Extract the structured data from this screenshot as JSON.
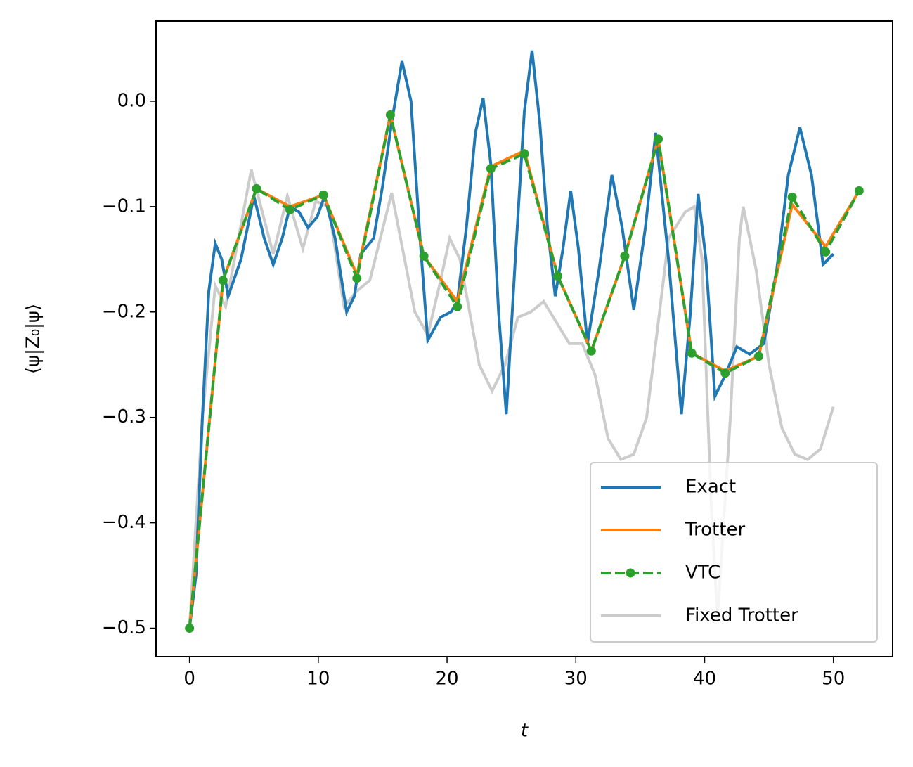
{
  "chart_data": {
    "type": "line",
    "xlabel": "t",
    "ylabel": "⟨ψ|Z₀|ψ⟩",
    "xlim": [
      -2.6,
      54.6
    ],
    "ylim": [
      -0.527,
      0.076
    ],
    "xticks": [
      0,
      10,
      20,
      30,
      40,
      50
    ],
    "yticks": [
      {
        "value": -0.5,
        "label": "−0.5"
      },
      {
        "value": -0.4,
        "label": "−0.4"
      },
      {
        "value": -0.3,
        "label": "−0.3"
      },
      {
        "value": -0.2,
        "label": "−0.2"
      },
      {
        "value": -0.1,
        "label": "−0.1"
      },
      {
        "value": 0,
        "label": "0.0"
      }
    ],
    "legend": "lower right",
    "series": [
      {
        "name": "Exact",
        "color": "#1f77b4",
        "linestyle": "solid",
        "x": [
          0,
          0.5,
          1,
          1.5,
          2,
          2.5,
          3,
          4,
          5,
          5.8,
          6.5,
          7.2,
          7.8,
          8.5,
          9.2,
          9.9,
          10.5,
          11.3,
          12.2,
          12.8,
          13.3,
          14.3,
          15,
          15.7,
          16.5,
          17.2,
          17.9,
          18.5,
          19.5,
          20.3,
          20.8,
          21.5,
          22.2,
          22.8,
          23.4,
          24,
          24.6,
          25.3,
          26,
          26.6,
          27.2,
          27.8,
          28.4,
          29,
          29.6,
          30.2,
          30.9,
          31.8,
          32.8,
          33.6,
          34.5,
          35.4,
          36.2,
          37.2,
          38.2,
          38.9,
          39.5,
          40.1,
          40.8,
          41.6,
          42.5,
          43.5,
          44.6,
          45.6,
          46.5,
          47.4,
          48.3,
          49.2,
          50
        ],
        "values": [
          -0.5,
          -0.45,
          -0.3,
          -0.18,
          -0.135,
          -0.15,
          -0.185,
          -0.15,
          -0.09,
          -0.13,
          -0.155,
          -0.13,
          -0.1,
          -0.105,
          -0.12,
          -0.11,
          -0.09,
          -0.13,
          -0.2,
          -0.185,
          -0.145,
          -0.13,
          -0.08,
          -0.02,
          0.038,
          0.0,
          -0.13,
          -0.227,
          -0.205,
          -0.2,
          -0.19,
          -0.12,
          -0.03,
          0.003,
          -0.06,
          -0.2,
          -0.297,
          -0.15,
          -0.01,
          0.048,
          -0.02,
          -0.12,
          -0.185,
          -0.14,
          -0.085,
          -0.14,
          -0.23,
          -0.16,
          -0.07,
          -0.12,
          -0.198,
          -0.12,
          -0.03,
          -0.15,
          -0.297,
          -0.2,
          -0.088,
          -0.15,
          -0.28,
          -0.26,
          -0.233,
          -0.24,
          -0.23,
          -0.16,
          -0.07,
          -0.025,
          -0.07,
          -0.155,
          -0.145
        ]
      },
      {
        "name": "Trotter",
        "color": "#ff7f0e",
        "linestyle": "solid",
        "x": [
          0,
          2.6,
          5.2,
          7.8,
          10.4,
          13.0,
          15.6,
          18.2,
          20.8,
          23.4,
          26.0,
          28.6,
          31.2,
          33.8,
          36.4,
          39.0,
          41.6,
          44.2,
          46.8,
          49.4,
          52.0
        ],
        "values": [
          -0.5,
          -0.17,
          -0.083,
          -0.1,
          -0.089,
          -0.165,
          -0.013,
          -0.147,
          -0.19,
          -0.062,
          -0.047,
          -0.166,
          -0.237,
          -0.147,
          -0.036,
          -0.239,
          -0.256,
          -0.242,
          -0.098,
          -0.138,
          -0.085
        ]
      },
      {
        "name": "VTC",
        "color": "#2ca02c",
        "linestyle": "dashed",
        "marker": "o",
        "x": [
          0,
          2.6,
          5.2,
          7.8,
          10.4,
          13.0,
          15.6,
          18.2,
          20.8,
          23.4,
          26.0,
          28.6,
          31.2,
          33.8,
          36.4,
          39.0,
          41.6,
          44.2,
          46.8,
          49.4,
          52.0
        ],
        "values": [
          -0.5,
          -0.17,
          -0.083,
          -0.103,
          -0.089,
          -0.168,
          -0.013,
          -0.147,
          -0.195,
          -0.064,
          -0.05,
          -0.166,
          -0.237,
          -0.147,
          -0.036,
          -0.239,
          -0.258,
          -0.242,
          -0.091,
          -0.143,
          -0.085
        ]
      },
      {
        "name": "Fixed Trotter",
        "color": "#cccccc",
        "linestyle": "solid",
        "x": [
          0,
          1,
          2,
          2.8,
          4.8,
          6.5,
          7.6,
          8.8,
          9.8,
          10.8,
          12,
          13,
          14,
          15.7,
          17.5,
          18.5,
          19.5,
          20.2,
          21,
          22.5,
          23.5,
          24.5,
          25.5,
          26.5,
          27.5,
          28.5,
          29.5,
          30.5,
          31.5,
          32.5,
          33.5,
          34.5,
          35.5,
          36.5,
          37.2,
          38.5,
          39.2,
          39.8,
          40.5,
          41,
          42,
          42.7,
          43,
          44,
          45,
          46,
          47,
          48,
          49,
          50
        ],
        "values": [
          -0.5,
          -0.3,
          -0.175,
          -0.195,
          -0.065,
          -0.145,
          -0.09,
          -0.14,
          -0.095,
          -0.1,
          -0.195,
          -0.18,
          -0.17,
          -0.087,
          -0.2,
          -0.222,
          -0.17,
          -0.13,
          -0.15,
          -0.25,
          -0.275,
          -0.25,
          -0.205,
          -0.2,
          -0.19,
          -0.21,
          -0.23,
          -0.23,
          -0.26,
          -0.32,
          -0.34,
          -0.335,
          -0.3,
          -0.2,
          -0.13,
          -0.105,
          -0.1,
          -0.15,
          -0.38,
          -0.49,
          -0.3,
          -0.13,
          -0.1,
          -0.16,
          -0.25,
          -0.31,
          -0.335,
          -0.34,
          -0.33,
          -0.29
        ]
      }
    ]
  }
}
